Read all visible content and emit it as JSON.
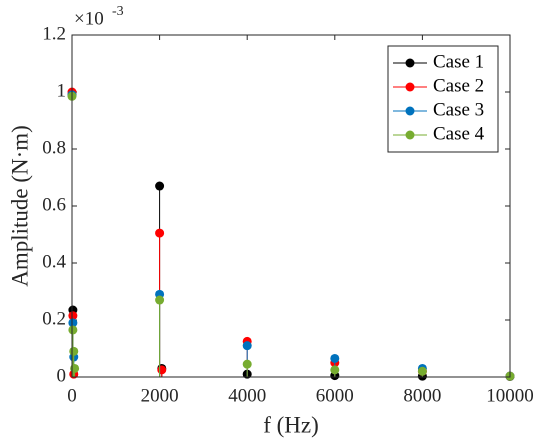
{
  "chart_data": {
    "type": "stem",
    "x_label": "f (Hz)",
    "y_label": "Amplitude (N·m)",
    "y_multiplier": "×10",
    "y_multiplier_exponent": "-3",
    "xlim": [
      0,
      10000
    ],
    "xticks": [
      0,
      2000,
      4000,
      6000,
      8000,
      10000
    ],
    "ylim": [
      0,
      1.2
    ],
    "yticks": [
      0,
      0.2,
      0.4,
      0.6,
      0.8,
      1,
      1.2
    ],
    "grid": false,
    "legend": "top-right",
    "series": [
      {
        "name": "Case 1",
        "color": "#000000",
        "x": [
          0,
          20,
          2000,
          2050,
          4000,
          6000,
          8000,
          10000
        ],
        "values": [
          0.99,
          0.235,
          0.67,
          0.03,
          0.01,
          0.005,
          0.003,
          0.002
        ]
      },
      {
        "name": "Case 2",
        "color": "#ff0000",
        "x": [
          0,
          20,
          40,
          2000,
          2050,
          4000,
          6000,
          8000,
          10000
        ],
        "values": [
          1.0,
          0.215,
          0.01,
          0.505,
          0.025,
          0.125,
          0.05,
          0.02,
          0.003
        ]
      },
      {
        "name": "Case 3",
        "color": "#0072bd",
        "x": [
          0,
          20,
          40,
          2000,
          4000,
          6000,
          8000,
          10000
        ],
        "values": [
          0.99,
          0.19,
          0.07,
          0.29,
          0.11,
          0.065,
          0.03,
          0.003
        ]
      },
      {
        "name": "Case 4",
        "color": "#77ac30",
        "x": [
          0,
          20,
          40,
          60,
          2000,
          4000,
          6000,
          8000,
          10000
        ],
        "values": [
          0.985,
          0.165,
          0.09,
          0.03,
          0.27,
          0.045,
          0.025,
          0.02,
          0.003
        ]
      }
    ]
  }
}
